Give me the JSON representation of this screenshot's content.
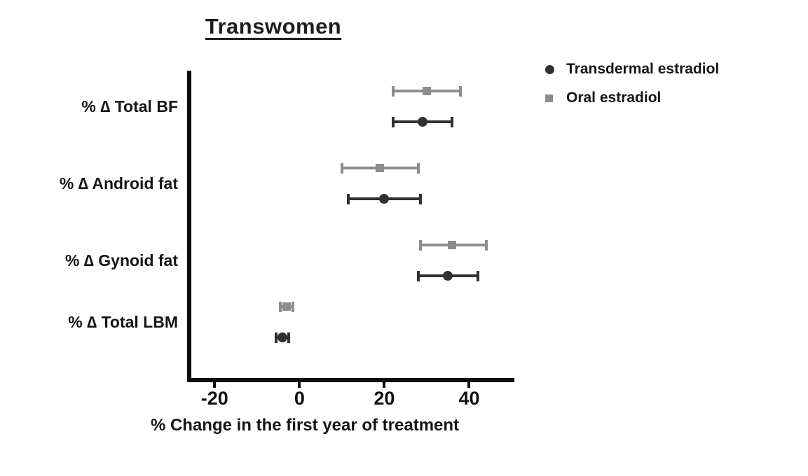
{
  "chart_data": {
    "type": "scatter",
    "title": "Transwomen",
    "xlabel": "% Change in the first year of treatment",
    "ylabel": "",
    "categories": [
      "% ∆ Total BF",
      "% ∆ Android fat",
      "% ∆ Gynoid fat",
      "% ∆ Total LBM"
    ],
    "x_ticks": [
      -20,
      0,
      20,
      40
    ],
    "xlim": [
      -26,
      50
    ],
    "grid": false,
    "legend_position": "top-right",
    "series": [
      {
        "name": "Transdermal estradiol",
        "marker": "circle",
        "color": "#313134",
        "values": [
          29,
          20,
          35,
          -4
        ],
        "ci_low": [
          22,
          11.5,
          28,
          -5.5
        ],
        "ci_high": [
          36,
          28.5,
          42,
          -2.5
        ]
      },
      {
        "name": "Oral estradiol",
        "marker": "square",
        "color": "#8d8d8f",
        "values": [
          30,
          19,
          36,
          -3
        ],
        "ci_low": [
          22,
          10,
          28.5,
          -4.5
        ],
        "ci_high": [
          38,
          28,
          44,
          -1.5
        ]
      }
    ]
  }
}
